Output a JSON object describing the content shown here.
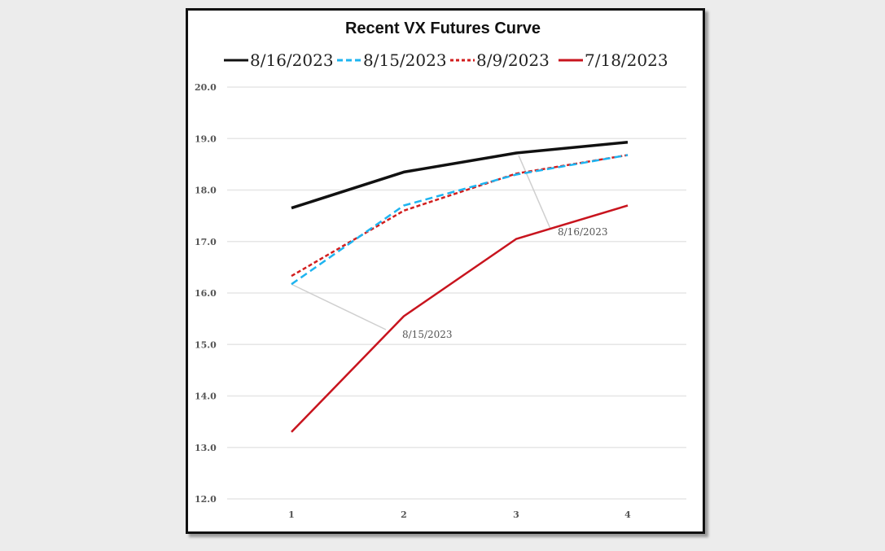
{
  "chart_data": {
    "type": "line",
    "title": "Recent VX Futures Curve",
    "categories": [
      "1",
      "2",
      "3",
      "4"
    ],
    "ylim": [
      12.0,
      20.0
    ],
    "yticks": [
      "12.0",
      "13.0",
      "14.0",
      "15.0",
      "16.0",
      "17.0",
      "18.0",
      "19.0",
      "20.0"
    ],
    "grid": true,
    "legend_position": "top",
    "series": [
      {
        "name": "8/16/2023",
        "values": [
          17.65,
          18.35,
          18.72,
          18.93
        ],
        "color": "#111111",
        "dash": "solid"
      },
      {
        "name": "8/15/2023",
        "values": [
          16.17,
          17.7,
          18.3,
          18.68
        ],
        "color": "#1eb4f0",
        "dash": "dashed"
      },
      {
        "name": "8/9/2023",
        "values": [
          16.33,
          17.6,
          18.32,
          18.68
        ],
        "color": "#d21e1e",
        "dash": "dotted"
      },
      {
        "name": "7/18/2023",
        "values": [
          13.3,
          15.55,
          17.05,
          17.7
        ],
        "color": "#c8141e",
        "dash": "solid"
      }
    ],
    "annotations": [
      {
        "text": "8/15/2023",
        "points_to": {
          "series": "8/15/2023",
          "x": "1"
        }
      },
      {
        "text": "8/16/2023",
        "points_to": {
          "series": "8/16/2023",
          "x": "3"
        }
      }
    ]
  }
}
